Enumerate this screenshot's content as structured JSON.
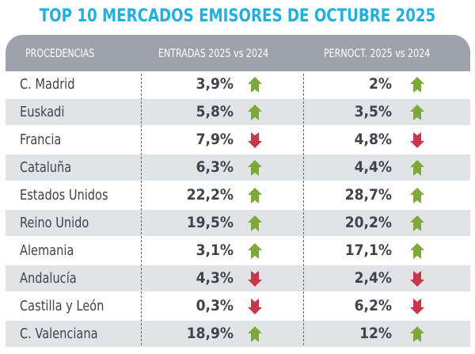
{
  "title": "TOP 10 MERCADOS EMISORES DE OCTUBRE 2025",
  "chart_data": {
    "type": "table",
    "columns": [
      "PROCEDENCIAS",
      "ENTRADAS 2025 vs 2024",
      "PERNOCT. 2025 vs 2024"
    ],
    "rows": [
      {
        "name": "C. Madrid",
        "entradas": "3,9%",
        "entradas_trend": "up",
        "pernoct": "2%",
        "pernoct_trend": "up"
      },
      {
        "name": "Euskadi",
        "entradas": "5,8%",
        "entradas_trend": "up",
        "pernoct": "3,5%",
        "pernoct_trend": "up"
      },
      {
        "name": "Francia",
        "entradas": "7,9%",
        "entradas_trend": "down",
        "pernoct": "4,8%",
        "pernoct_trend": "down"
      },
      {
        "name": "Cataluña",
        "entradas": "6,3%",
        "entradas_trend": "up",
        "pernoct": "4,4%",
        "pernoct_trend": "up"
      },
      {
        "name": "Estados Unidos",
        "entradas": "22,2%",
        "entradas_trend": "up",
        "pernoct": "28,7%",
        "pernoct_trend": "up"
      },
      {
        "name": "Reino Unido",
        "entradas": "19,5%",
        "entradas_trend": "up",
        "pernoct": "20,2%",
        "pernoct_trend": "up"
      },
      {
        "name": "Alemania",
        "entradas": "3,1%",
        "entradas_trend": "up",
        "pernoct": "17,1%",
        "pernoct_trend": "up"
      },
      {
        "name": "Andalucía",
        "entradas": "4,3%",
        "entradas_trend": "down",
        "pernoct": "2,4%",
        "pernoct_trend": "down"
      },
      {
        "name": "Castilla y León",
        "entradas": "0,3%",
        "entradas_trend": "down",
        "pernoct": "6,2%",
        "pernoct_trend": "down"
      },
      {
        "name": "C. Valenciana",
        "entradas": "18,9%",
        "entradas_trend": "up",
        "pernoct": "12%",
        "pernoct_trend": "up"
      }
    ]
  },
  "colors": {
    "title": "#1fb1dd",
    "header": "#9ea2ab",
    "row_alt": "#e1e4e7",
    "up": "#7fa83a",
    "down": "#c8364a"
  }
}
